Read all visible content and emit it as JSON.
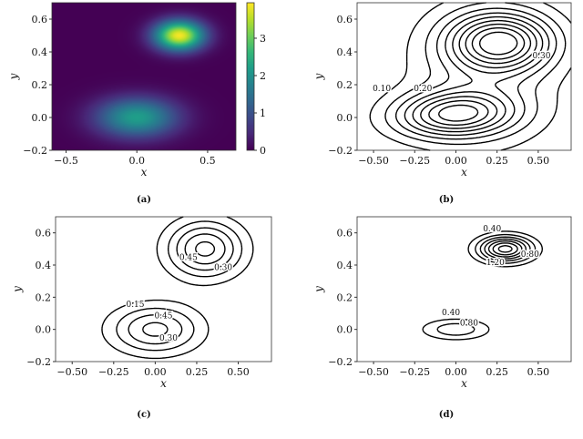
{
  "chart_data": [
    {
      "panel": "(a)",
      "type": "heatmap",
      "xlabel": "x",
      "ylabel": "y",
      "xlim": [
        -0.6,
        0.7
      ],
      "ylim": [
        -0.2,
        0.7
      ],
      "xticks": [
        "-0.5",
        "0.0",
        "0.5"
      ],
      "xtick_values": [
        -0.5,
        0.0,
        0.5
      ],
      "yticks": [
        "-0.2",
        "0.0",
        "0.2",
        "0.4",
        "0.6"
      ],
      "ytick_values": [
        -0.2,
        0.0,
        0.2,
        0.4,
        0.6
      ],
      "colormap": "viridis",
      "colorbar": {
        "range": [
          0,
          3.95
        ],
        "ticks": [
          "0",
          "1",
          "2",
          "3"
        ],
        "tick_values": [
          0,
          1,
          2,
          3
        ]
      },
      "peaks": [
        {
          "x": 0.3,
          "y": 0.5,
          "value": 3.9
        },
        {
          "x": 0.0,
          "y": 0.0,
          "value": 2.2
        }
      ]
    },
    {
      "panel": "(b)",
      "type": "contour",
      "xlabel": "x",
      "ylabel": "y",
      "xlim": [
        -0.6,
        0.7
      ],
      "ylim": [
        -0.2,
        0.7
      ],
      "xticks": [
        "-0.50",
        "-0.25",
        "0.00",
        "0.25",
        "0.50"
      ],
      "xtick_values": [
        -0.5,
        -0.25,
        0,
        0.25,
        0.5
      ],
      "yticks": [
        "-0.2",
        "0.0",
        "0.2",
        "0.4",
        "0.6"
      ],
      "ytick_values": [
        -0.2,
        0.0,
        0.2,
        0.4,
        0.6
      ],
      "levels": [
        0.05,
        0.1,
        0.15,
        0.2,
        0.25,
        0.3,
        0.35,
        0.4,
        0.45
      ],
      "contour_labels": [
        "0.10",
        "0.20",
        "0.30"
      ]
    },
    {
      "panel": "(c)",
      "type": "contour",
      "xlabel": "x",
      "ylabel": "y",
      "xlim": [
        -0.6,
        0.7
      ],
      "ylim": [
        -0.2,
        0.7
      ],
      "xticks": [
        "-0.50",
        "-0.25",
        "0.00",
        "0.25",
        "0.50"
      ],
      "xtick_values": [
        -0.5,
        -0.25,
        0,
        0.25,
        0.5
      ],
      "yticks": [
        "-0.2",
        "0.0",
        "0.2",
        "0.4",
        "0.6"
      ],
      "ytick_values": [
        -0.2,
        0.0,
        0.2,
        0.4,
        0.6
      ],
      "levels": [
        0.15,
        0.3,
        0.45,
        0.6,
        0.75
      ],
      "contour_labels": [
        "0.15",
        "0.45",
        "0.30",
        "0.45",
        "0.30"
      ]
    },
    {
      "panel": "(d)",
      "type": "contour",
      "xlabel": "x",
      "ylabel": "y",
      "xlim": [
        -0.6,
        0.7
      ],
      "ylim": [
        -0.2,
        0.7
      ],
      "xticks": [
        "-0.50",
        "-0.25",
        "0.00",
        "0.25",
        "0.50"
      ],
      "xtick_values": [
        -0.5,
        -0.25,
        0,
        0.25,
        0.5
      ],
      "yticks": [
        "-0.2",
        "0.0",
        "0.2",
        "0.4",
        "0.6"
      ],
      "ytick_values": [
        -0.2,
        0.0,
        0.2,
        0.4,
        0.6
      ],
      "levels": [
        0.4,
        0.8,
        1.2,
        1.6,
        2.0,
        2.4,
        2.8
      ],
      "contour_labels": [
        "0.40",
        "1.20",
        "0.80",
        "0.40",
        "0.80"
      ]
    }
  ]
}
